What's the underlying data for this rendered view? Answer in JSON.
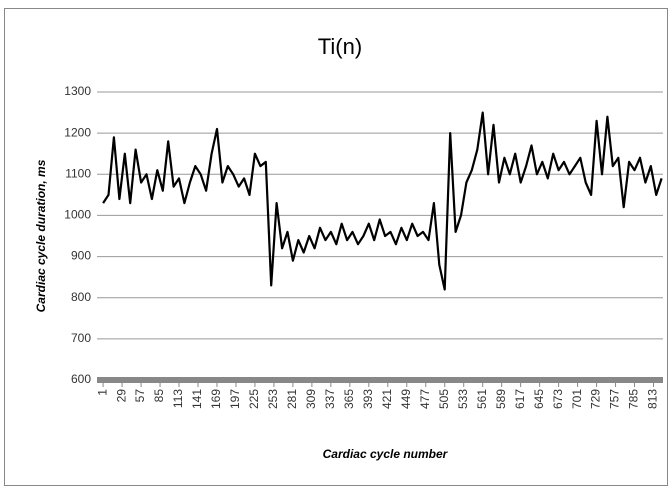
{
  "chart_data": {
    "type": "line",
    "title": "Ti(n)",
    "x_label": "Cardiac cycle number",
    "y_label": "Cardiac cycle duration, ms",
    "x": [
      1,
      9,
      17,
      25,
      33,
      41,
      49,
      57,
      65,
      73,
      81,
      89,
      97,
      105,
      113,
      121,
      129,
      137,
      145,
      153,
      161,
      169,
      177,
      185,
      193,
      201,
      209,
      217,
      225,
      233,
      241,
      249,
      257,
      265,
      273,
      281,
      289,
      297,
      305,
      313,
      321,
      329,
      337,
      345,
      353,
      361,
      369,
      377,
      385,
      393,
      401,
      409,
      417,
      425,
      433,
      441,
      449,
      457,
      465,
      473,
      481,
      489,
      497,
      505,
      513,
      521,
      529,
      537,
      545,
      553,
      561,
      569,
      577,
      585,
      593,
      601,
      609,
      617,
      625,
      633,
      641,
      649,
      657,
      665,
      673,
      681,
      689,
      697,
      705,
      713,
      721,
      729,
      737,
      745,
      753,
      761,
      769,
      777,
      785,
      793,
      801,
      809,
      817,
      825
    ],
    "series": [
      {
        "name": "Ti(n)",
        "color": "#000000",
        "values": [
          1030,
          1050,
          1190,
          1040,
          1150,
          1030,
          1160,
          1080,
          1100,
          1040,
          1110,
          1060,
          1180,
          1070,
          1090,
          1030,
          1080,
          1120,
          1100,
          1060,
          1150,
          1210,
          1080,
          1120,
          1100,
          1070,
          1090,
          1050,
          1150,
          1120,
          1130,
          830,
          1030,
          920,
          960,
          890,
          940,
          910,
          950,
          920,
          970,
          940,
          960,
          930,
          980,
          940,
          960,
          930,
          950,
          980,
          940,
          990,
          950,
          960,
          930,
          970,
          940,
          980,
          950,
          960,
          940,
          1030,
          880,
          820,
          1200,
          960,
          1000,
          1080,
          1110,
          1160,
          1250,
          1100,
          1220,
          1080,
          1140,
          1100,
          1150,
          1080,
          1120,
          1170,
          1100,
          1130,
          1090,
          1150,
          1110,
          1130,
          1100,
          1120,
          1140,
          1080,
          1050,
          1230,
          1100,
          1240,
          1120,
          1140,
          1020,
          1130,
          1110,
          1140,
          1080,
          1120,
          1050,
          1090
        ]
      }
    ],
    "xlim": [
      -8,
      827
    ],
    "xticks": [
      1,
      29,
      57,
      85,
      113,
      141,
      169,
      197,
      225,
      253,
      281,
      309,
      337,
      365,
      393,
      421,
      449,
      477,
      505,
      533,
      561,
      589,
      617,
      645,
      673,
      701,
      729,
      757,
      785,
      813
    ],
    "ylim": [
      600,
      1300
    ],
    "yticks": [
      600,
      700,
      800,
      900,
      1000,
      1100,
      1200,
      1300
    ],
    "grid": true
  }
}
